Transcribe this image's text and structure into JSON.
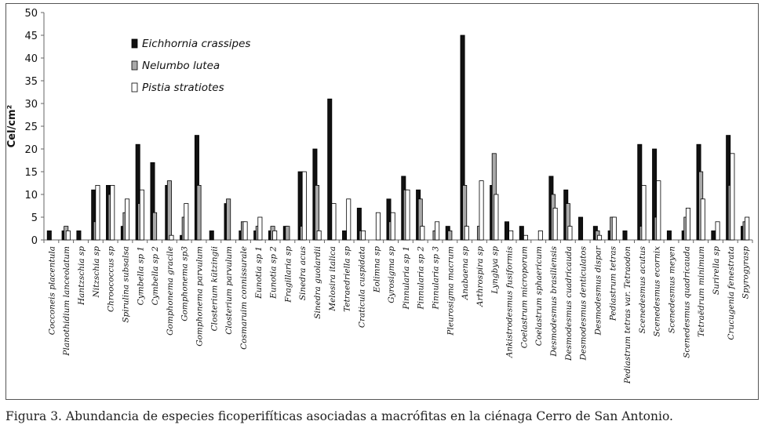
{
  "caption": "Figura 3. Abundancia de especies ficoperifíticas asociadas a macrófitas en la ciénaga Cerro de San Antonio.",
  "chart_data": {
    "type": "bar",
    "ylabel": "Cel/cm²",
    "ylim": [
      0,
      50
    ],
    "yticks": [
      0,
      5,
      10,
      15,
      20,
      25,
      30,
      35,
      40,
      45,
      50
    ],
    "grid": false,
    "legend_position": "top-left",
    "categories": [
      "Cocconeis placentula",
      "Planothidium lanceolatum",
      "Hantzschia sp",
      "Nitzschia sp",
      "Chroococcus sp",
      "Spirulina subsalsa",
      "Cymbella sp 1",
      "Cymbella sp 2",
      "Gomphonema gracile",
      "Gomphonema sp3",
      "Gomphonema parvulum",
      "Closterium kützingii",
      "Closterium parvulum",
      "Cosmaruim connissurale",
      "Eunotia sp 1",
      "Eunotia sp 2",
      "Fragillaria sp",
      "Sinedra acus",
      "Sinedra guolardii",
      "Melosira italica",
      "Tetraedriella sp",
      "Craticula cuspidata",
      "Eolimna sp",
      "Gyrosigma sp",
      "Pinnularia sp 1",
      "Pinnularia sp 2",
      "Pinnularia sp 3",
      "Pleurosigma macrum",
      "Anabaena sp",
      "Arthrospira sp",
      "Lyngbya sp",
      "Ankistrodesmus fusiformis",
      "Coelastrum microporum",
      "Coelastrum sphaericum",
      "Desmodesmus brasiliensis",
      "Desmodesmus cuadricauda",
      "Desmodesmus denticulatos",
      "Desmodesmus dispar",
      "Pediastrum tetras",
      "Pediastrum tetras var. Tetraodon",
      "Scenedesmus acutus",
      "Scenedesmus ecornix",
      "Scenedesmus meyen",
      "Scenedesmus quadricauda",
      "Tetraëdrum minimum",
      "Surirella sp",
      "Crucugenia fenestrata",
      "Spyrogyrasp"
    ],
    "series": [
      {
        "name": "Eichhornia crassipes",
        "color": "#111111",
        "values": [
          2,
          2,
          2,
          11,
          12,
          3,
          21,
          17,
          12,
          1,
          23,
          2,
          8,
          2,
          2,
          2,
          3,
          15,
          20,
          31,
          2,
          7,
          0,
          9,
          14,
          11,
          0,
          3,
          45,
          0,
          12,
          4,
          3,
          0,
          14,
          11,
          5,
          3,
          2,
          2,
          21,
          20,
          2,
          2,
          21,
          2,
          23,
          3
        ]
      },
      {
        "name": "Nelumbo lutea",
        "color": "#a9a9a9",
        "values": [
          0,
          3,
          0,
          4,
          10,
          6,
          8,
          6,
          13,
          5,
          12,
          0,
          9,
          4,
          3,
          3,
          3,
          3,
          12,
          0,
          0,
          2,
          0,
          4,
          11,
          9,
          2,
          2,
          12,
          3,
          19,
          0,
          0,
          0,
          10,
          8,
          0,
          2,
          5,
          0,
          3,
          5,
          0,
          5,
          15,
          0,
          12,
          4
        ]
      },
      {
        "name": "Pistia stratiotes",
        "color": "#ffffff",
        "values": [
          0,
          2,
          0,
          12,
          12,
          9,
          11,
          0,
          1,
          8,
          0,
          0,
          0,
          4,
          5,
          2,
          0,
          15,
          2,
          8,
          9,
          2,
          6,
          6,
          11,
          3,
          4,
          0,
          3,
          13,
          10,
          2,
          1,
          2,
          7,
          3,
          0,
          1,
          5,
          0,
          12,
          13,
          0,
          7,
          9,
          4,
          19,
          5
        ]
      }
    ]
  }
}
